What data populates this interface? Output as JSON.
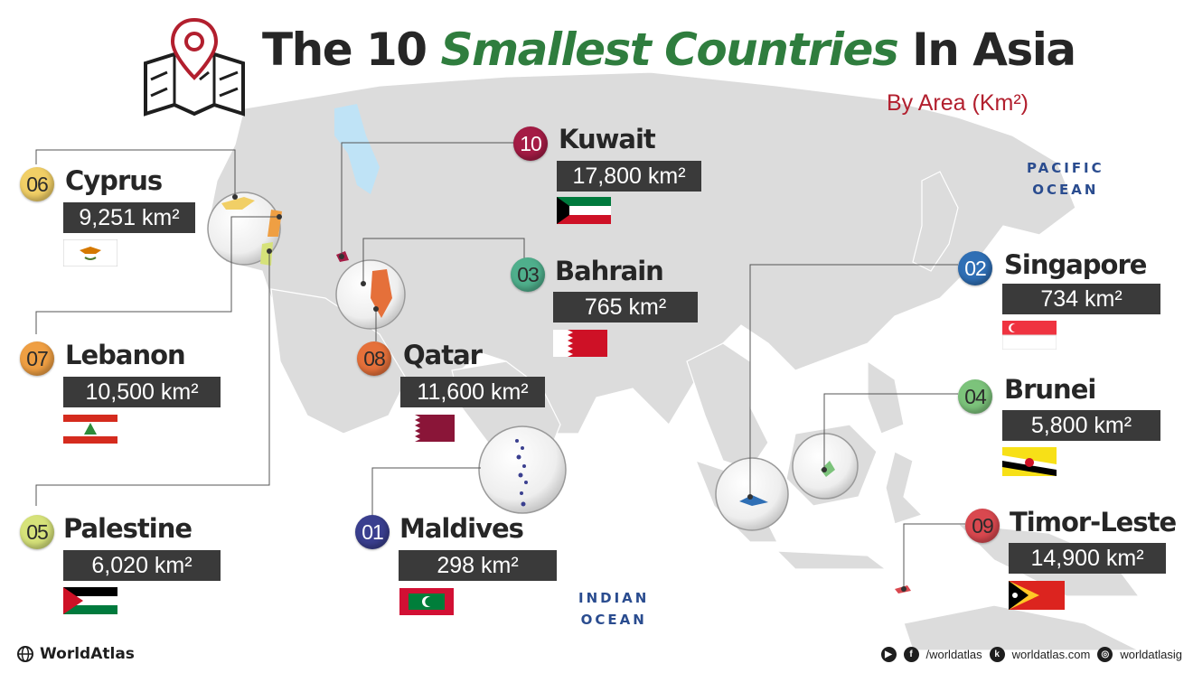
{
  "title": {
    "part1": "The 10 ",
    "highlight": "Smallest Countries",
    "part2": " In Asia"
  },
  "subtitle": "By Area (Km²)",
  "oceans": {
    "pacific": {
      "line1": "PACIFIC",
      "line2": "OCEAN"
    },
    "indian": {
      "line1": "INDIAN",
      "line2": "OCEAN"
    }
  },
  "countries": [
    {
      "rank": "01",
      "name": "Maldives",
      "area": "298 km²",
      "badge_color": "#3a3f8f"
    },
    {
      "rank": "02",
      "name": "Singapore",
      "area": "734 km²",
      "badge_color": "#2f6fb5"
    },
    {
      "rank": "03",
      "name": "Bahrain",
      "area": "765 km²",
      "badge_color": "#4faf8c"
    },
    {
      "rank": "04",
      "name": "Brunei",
      "area": "5,800 km²",
      "badge_color": "#7cc37b"
    },
    {
      "rank": "05",
      "name": "Palestine",
      "area": "6,020 km²",
      "badge_color": "#d6e27a"
    },
    {
      "rank": "06",
      "name": "Cyprus",
      "area": "9,251 km²",
      "badge_color": "#f1cf66"
    },
    {
      "rank": "07",
      "name": "Lebanon",
      "area": "10,500 km²",
      "badge_color": "#ef9f43"
    },
    {
      "rank": "08",
      "name": "Qatar",
      "area": "11,600 km²",
      "badge_color": "#e5703a"
    },
    {
      "rank": "09",
      "name": "Timor-Leste",
      "area": "14,900 km²",
      "badge_color": "#d9484f"
    },
    {
      "rank": "10",
      "name": "Kuwait",
      "area": "17,800 km²",
      "badge_color": "#a41c45"
    }
  ],
  "colors": {
    "title_dark": "#262626",
    "title_green": "#2f7d3e",
    "subtitle_red": "#b21f2e",
    "ocean_blue": "#2a4c8f",
    "land": "#dcdcdc",
    "area_box": "#3a3a3a"
  },
  "footer": {
    "brand": "WorldAtlas",
    "social_handle": "/worldatlas",
    "website": "worldatlas.com",
    "instagram": "worldatlasig"
  },
  "icons": [
    "map-pin-icon",
    "globe-icon",
    "youtube-icon",
    "facebook-icon",
    "web-icon",
    "instagram-icon"
  ]
}
